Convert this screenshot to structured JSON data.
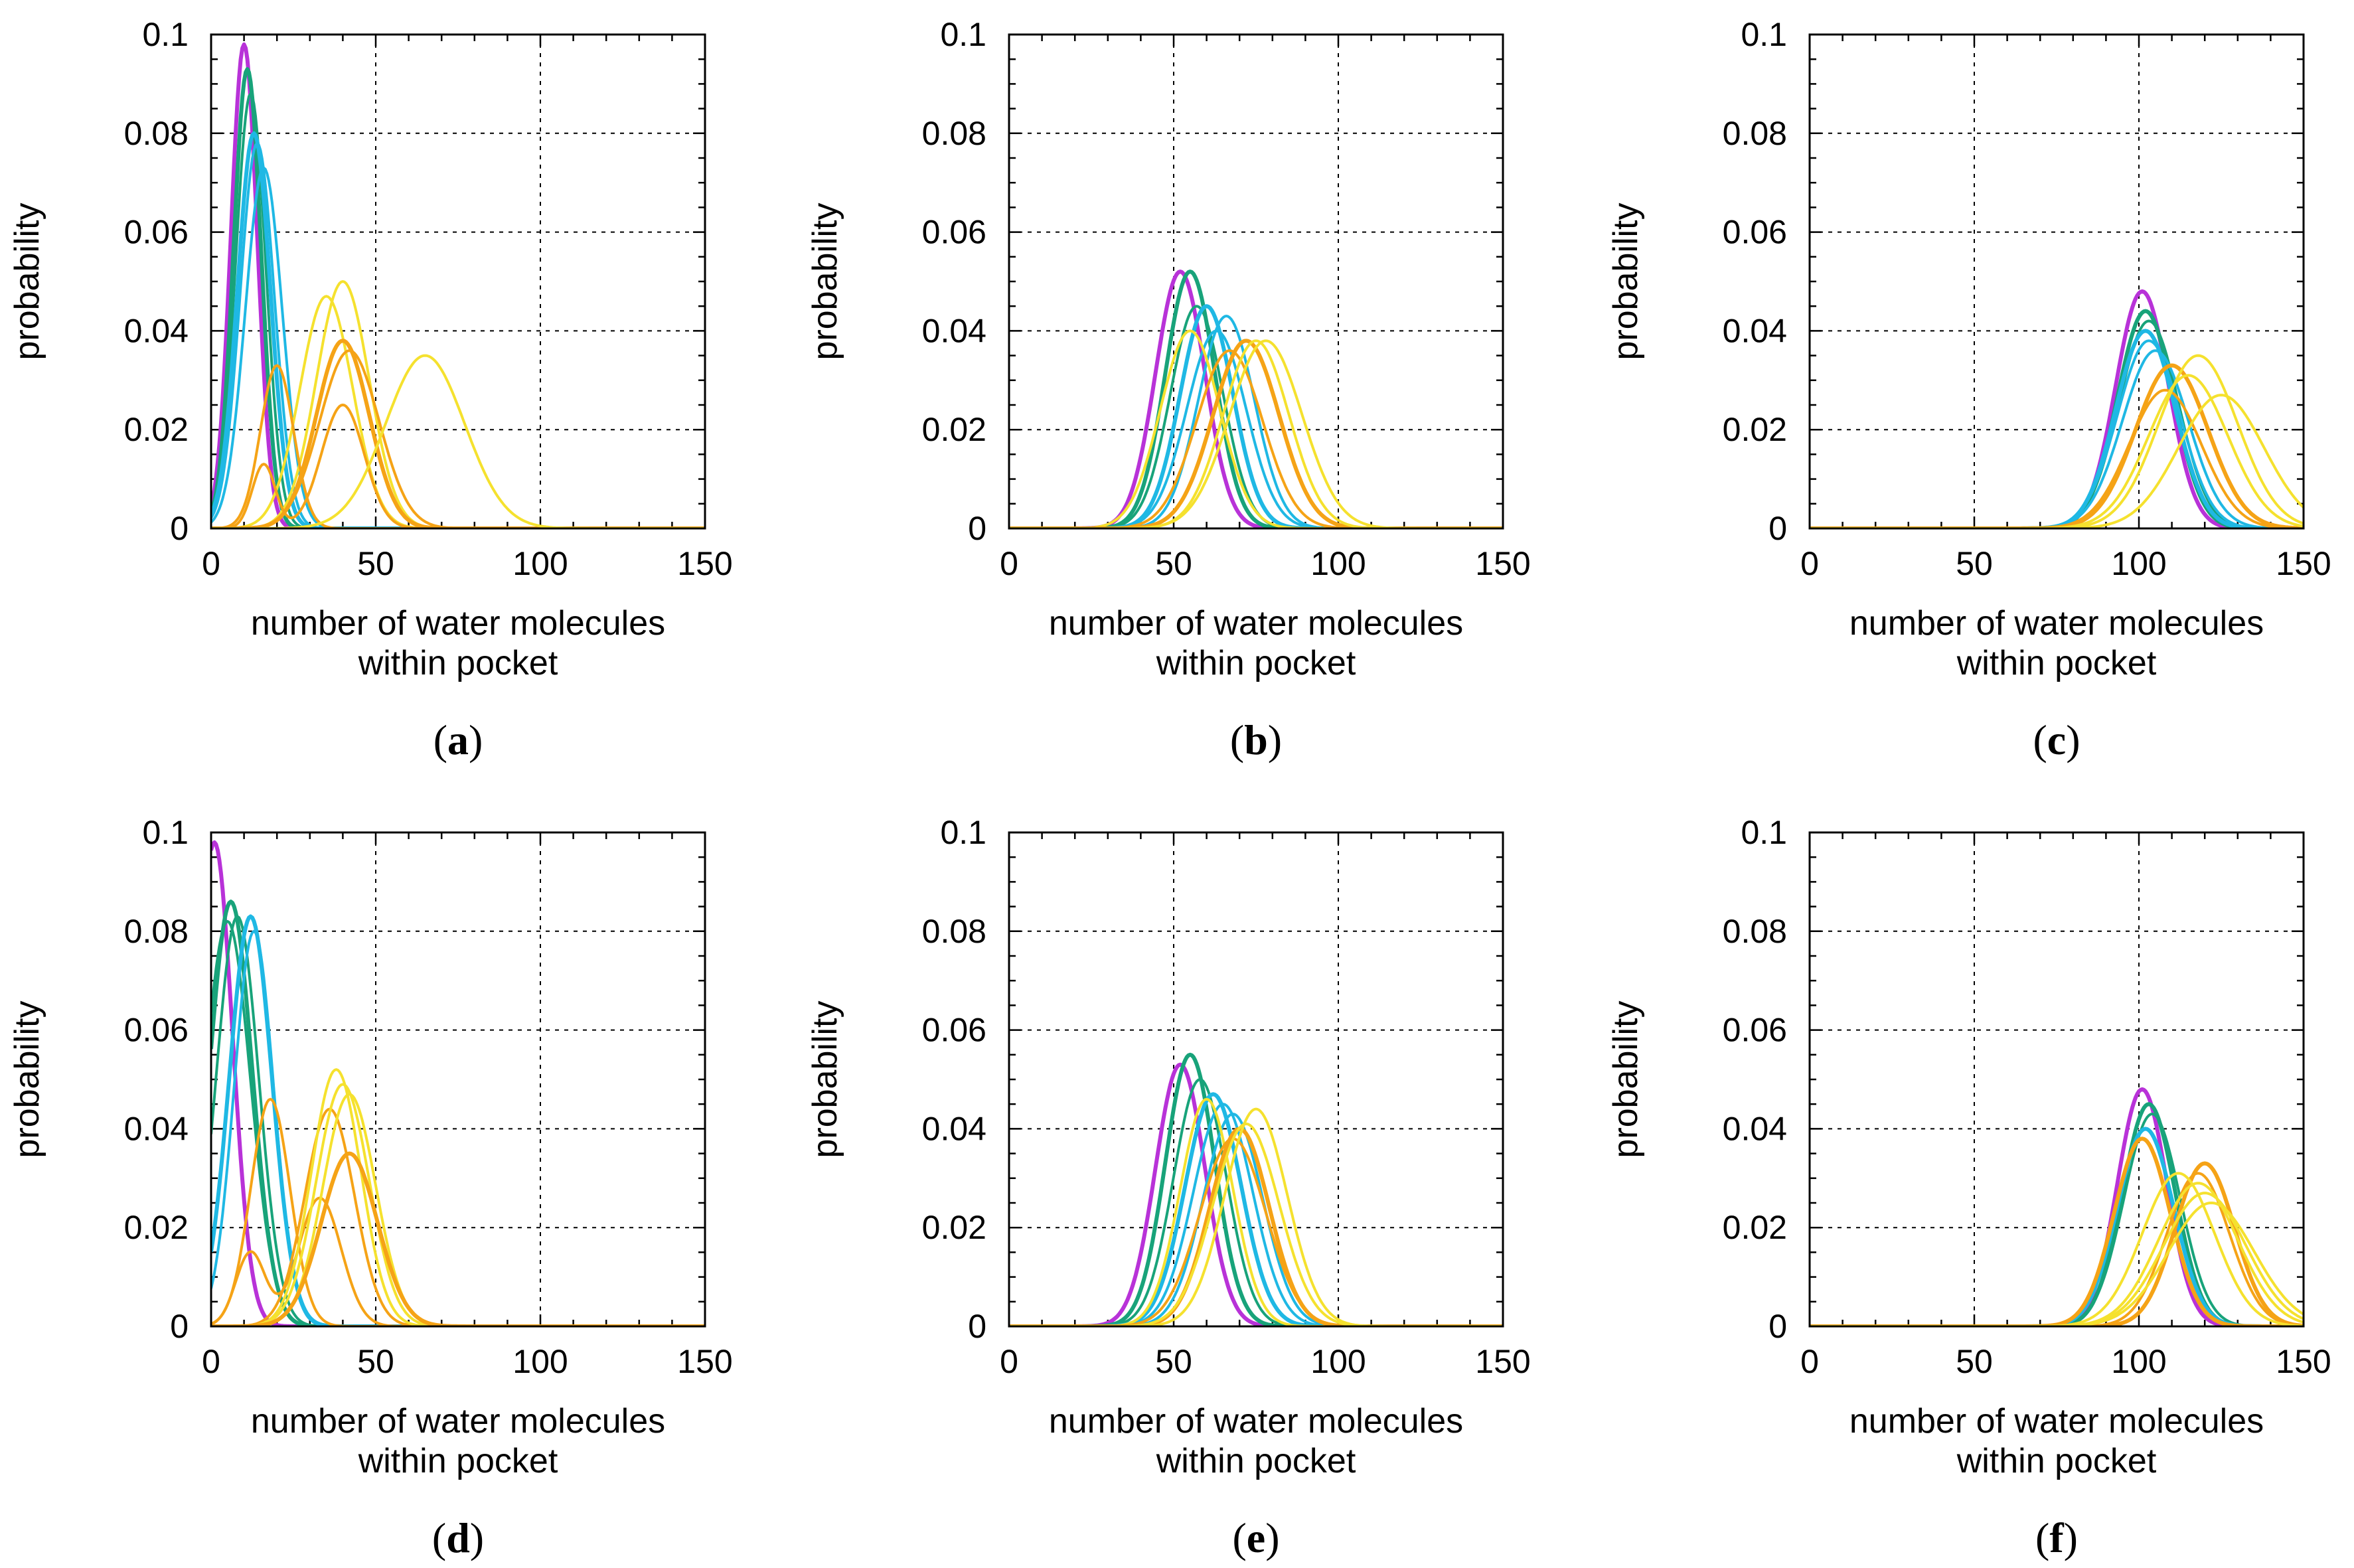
{
  "colors": {
    "magenta": "#b832d8",
    "teal": "#18a37a",
    "cyan": "#1fb8e4",
    "orange": "#f5a316",
    "yellow": "#f5e12e"
  },
  "chart_data": [
    {
      "type": "line",
      "caption_letter": "a",
      "xlabel_line1": "number of water molecules",
      "xlabel_line2": "within pocket",
      "ylabel": "probability",
      "xlim": [
        0,
        150
      ],
      "ylim": [
        0,
        0.1
      ],
      "xticks": [
        "0",
        "50",
        "100",
        "150"
      ],
      "yticks": [
        "0",
        "0.02",
        "0.04",
        "0.06",
        "0.08",
        "0.1"
      ],
      "grid": true,
      "series": [
        {
          "peaks": [
            [
              10,
              4.0,
              0.098
            ]
          ],
          "color": "magenta",
          "width": 6
        },
        {
          "peaks": [
            [
              11,
              4.2,
              0.093
            ]
          ],
          "color": "teal",
          "width": 6
        },
        {
          "peaks": [
            [
              12,
              4.6,
              0.088
            ]
          ],
          "color": "teal",
          "width": 4
        },
        {
          "peaks": [
            [
              13,
              5.0,
              0.08
            ]
          ],
          "color": "cyan",
          "width": 6
        },
        {
          "peaks": [
            [
              14,
              5.2,
              0.078
            ]
          ],
          "color": "cyan",
          "width": 4
        },
        {
          "peaks": [
            [
              16,
              5.6,
              0.073
            ]
          ],
          "color": "cyan",
          "width": 4
        },
        {
          "peaks": [
            [
              35,
              8.0,
              0.047
            ]
          ],
          "color": "yellow",
          "width": 4
        },
        {
          "peaks": [
            [
              40,
              8.0,
              0.05
            ]
          ],
          "color": "yellow",
          "width": 4
        },
        {
          "peaks": [
            [
              40,
              8.0,
              0.038
            ]
          ],
          "color": "orange",
          "width": 6
        },
        {
          "peaks": [
            [
              20,
              5.0,
              0.033
            ]
          ],
          "color": "orange",
          "width": 4
        },
        {
          "peaks": [
            [
              16,
              3.5,
              0.013
            ],
            [
              40,
              6.5,
              0.025
            ]
          ],
          "color": "orange",
          "width": 4
        },
        {
          "peaks": [
            [
              42,
              9.0,
              0.036
            ]
          ],
          "color": "orange",
          "width": 4
        },
        {
          "peaks": [
            [
              65,
              12.0,
              0.035
            ]
          ],
          "color": "yellow",
          "width": 4
        }
      ]
    },
    {
      "type": "line",
      "caption_letter": "b",
      "xlabel_line1": "number of water molecules",
      "xlabel_line2": "within pocket",
      "ylabel": "probability",
      "xlim": [
        0,
        150
      ],
      "ylim": [
        0,
        0.1
      ],
      "xticks": [
        "0",
        "50",
        "100",
        "150"
      ],
      "yticks": [
        "0",
        "0.02",
        "0.04",
        "0.06",
        "0.08",
        "0.1"
      ],
      "grid": true,
      "series": [
        {
          "peaks": [
            [
              52,
              7.5,
              0.052
            ]
          ],
          "color": "magenta",
          "width": 6
        },
        {
          "peaks": [
            [
              55,
              7.5,
              0.052
            ]
          ],
          "color": "teal",
          "width": 6
        },
        {
          "peaks": [
            [
              57,
              8.0,
              0.045
            ]
          ],
          "color": "teal",
          "width": 4
        },
        {
          "peaks": [
            [
              60,
              8.0,
              0.045
            ]
          ],
          "color": "cyan",
          "width": 6
        },
        {
          "peaks": [
            [
              66,
              8.5,
              0.043
            ]
          ],
          "color": "cyan",
          "width": 4
        },
        {
          "peaks": [
            [
              63,
              9.0,
              0.04
            ]
          ],
          "color": "cyan",
          "width": 4
        },
        {
          "peaks": [
            [
              55,
              9.0,
              0.04
            ]
          ],
          "color": "yellow",
          "width": 4
        },
        {
          "peaks": [
            [
              72,
              10.0,
              0.038
            ]
          ],
          "color": "orange",
          "width": 6
        },
        {
          "peaks": [
            [
              67,
              10.0,
              0.036
            ]
          ],
          "color": "orange",
          "width": 4
        },
        {
          "peaks": [
            [
              75,
              10.0,
              0.038
            ]
          ],
          "color": "yellow",
          "width": 4
        },
        {
          "peaks": [
            [
              78,
              11.0,
              0.038
            ]
          ],
          "color": "yellow",
          "width": 4
        }
      ]
    },
    {
      "type": "line",
      "caption_letter": "c",
      "xlabel_line1": "number of water molecules",
      "xlabel_line2": "within pocket",
      "ylabel": "probability",
      "xlim": [
        0,
        150
      ],
      "ylim": [
        0,
        0.1
      ],
      "xticks": [
        "0",
        "50",
        "100",
        "150"
      ],
      "yticks": [
        "0",
        "0.02",
        "0.04",
        "0.06",
        "0.08",
        "0.1"
      ],
      "grid": true,
      "series": [
        {
          "peaks": [
            [
              101,
              8.0,
              0.048
            ]
          ],
          "color": "magenta",
          "width": 6
        },
        {
          "peaks": [
            [
              102,
              8.5,
              0.044
            ]
          ],
          "color": "teal",
          "width": 6
        },
        {
          "peaks": [
            [
              103,
              9.0,
              0.042
            ]
          ],
          "color": "teal",
          "width": 4
        },
        {
          "peaks": [
            [
              102,
              9.0,
              0.04
            ]
          ],
          "color": "cyan",
          "width": 6
        },
        {
          "peaks": [
            [
              103,
              9.5,
              0.038
            ]
          ],
          "color": "cyan",
          "width": 4
        },
        {
          "peaks": [
            [
              105,
              10.0,
              0.036
            ]
          ],
          "color": "cyan",
          "width": 4
        },
        {
          "peaks": [
            [
              110,
              11.0,
              0.033
            ]
          ],
          "color": "orange",
          "width": 6
        },
        {
          "peaks": [
            [
              108,
              11.0,
              0.028
            ]
          ],
          "color": "orange",
          "width": 4
        },
        {
          "peaks": [
            [
              118,
              12.0,
              0.035
            ]
          ],
          "color": "yellow",
          "width": 4
        },
        {
          "peaks": [
            [
              115,
              12.0,
              0.031
            ]
          ],
          "color": "yellow",
          "width": 4
        },
        {
          "peaks": [
            [
              125,
              13.0,
              0.027
            ]
          ],
          "color": "yellow",
          "width": 4
        }
      ]
    },
    {
      "type": "line",
      "caption_letter": "d",
      "xlabel_line1": "number of water molecules",
      "xlabel_line2": "within pocket",
      "ylabel": "probability",
      "xlim": [
        0,
        150
      ],
      "ylim": [
        0,
        0.1
      ],
      "xticks": [
        "0",
        "50",
        "100",
        "150"
      ],
      "yticks": [
        "0",
        "0.02",
        "0.04",
        "0.06",
        "0.08",
        "0.1"
      ],
      "grid": true,
      "series": [
        {
          "peaks": [
            [
              1,
              5.5,
              0.098
            ]
          ],
          "color": "magenta",
          "width": 6
        },
        {
          "peaks": [
            [
              6,
              6.5,
              0.086
            ]
          ],
          "color": "teal",
          "width": 6
        },
        {
          "peaks": [
            [
              8,
              6.5,
              0.083
            ]
          ],
          "color": "teal",
          "width": 4
        },
        {
          "peaks": [
            [
              5,
              7.0,
              0.082
            ]
          ],
          "color": "teal",
          "width": 4
        },
        {
          "peaks": [
            [
              12,
              6.5,
              0.083
            ]
          ],
          "color": "cyan",
          "width": 6
        },
        {
          "peaks": [
            [
              13,
              6.0,
              0.08
            ]
          ],
          "color": "cyan",
          "width": 4
        },
        {
          "peaks": [
            [
              18,
              6.0,
              0.046
            ]
          ],
          "color": "orange",
          "width": 4
        },
        {
          "peaks": [
            [
              12,
              4.5,
              0.015
            ],
            [
              33,
              6.5,
              0.026
            ]
          ],
          "color": "orange",
          "width": 4
        },
        {
          "peaks": [
            [
              36,
              7.5,
              0.044
            ]
          ],
          "color": "orange",
          "width": 4
        },
        {
          "peaks": [
            [
              38,
              7.5,
              0.052
            ]
          ],
          "color": "yellow",
          "width": 4
        },
        {
          "peaks": [
            [
              40,
              8.0,
              0.049
            ]
          ],
          "color": "yellow",
          "width": 4
        },
        {
          "peaks": [
            [
              42,
              8.0,
              0.047
            ]
          ],
          "color": "yellow",
          "width": 4
        },
        {
          "peaks": [
            [
              42,
              8.5,
              0.035
            ]
          ],
          "color": "orange",
          "width": 6
        }
      ]
    },
    {
      "type": "line",
      "caption_letter": "e",
      "xlabel_line1": "number of water molecules",
      "xlabel_line2": "within pocket",
      "ylabel": "probability",
      "xlim": [
        0,
        150
      ],
      "ylim": [
        0,
        0.1
      ],
      "xticks": [
        "0",
        "50",
        "100",
        "150"
      ],
      "yticks": [
        "0",
        "0.02",
        "0.04",
        "0.06",
        "0.08",
        "0.1"
      ],
      "grid": true,
      "series": [
        {
          "peaks": [
            [
              52,
              7.5,
              0.053
            ]
          ],
          "color": "magenta",
          "width": 6
        },
        {
          "peaks": [
            [
              55,
              7.5,
              0.055
            ]
          ],
          "color": "teal",
          "width": 6
        },
        {
          "peaks": [
            [
              58,
              8.0,
              0.05
            ]
          ],
          "color": "teal",
          "width": 4
        },
        {
          "peaks": [
            [
              62,
              8.5,
              0.047
            ]
          ],
          "color": "cyan",
          "width": 6
        },
        {
          "peaks": [
            [
              65,
              9.0,
              0.045
            ]
          ],
          "color": "cyan",
          "width": 4
        },
        {
          "peaks": [
            [
              68,
              9.0,
              0.043
            ]
          ],
          "color": "cyan",
          "width": 4
        },
        {
          "peaks": [
            [
              60,
              8.0,
              0.046
            ]
          ],
          "color": "yellow",
          "width": 4
        },
        {
          "peaks": [
            [
              70,
              9.0,
              0.04
            ]
          ],
          "color": "orange",
          "width": 6
        },
        {
          "peaks": [
            [
              68,
              10.0,
              0.038
            ]
          ],
          "color": "orange",
          "width": 4
        },
        {
          "peaks": [
            [
              75,
              9.5,
              0.044
            ]
          ],
          "color": "yellow",
          "width": 4
        },
        {
          "peaks": [
            [
              72,
              10.0,
              0.041
            ]
          ],
          "color": "yellow",
          "width": 4
        }
      ]
    },
    {
      "type": "line",
      "caption_letter": "f",
      "xlabel_line1": "number of water molecules",
      "xlabel_line2": "within pocket",
      "ylabel": "probability",
      "xlim": [
        0,
        150
      ],
      "ylim": [
        0,
        0.1
      ],
      "xticks": [
        "0",
        "50",
        "100",
        "150"
      ],
      "yticks": [
        "0",
        "0.02",
        "0.04",
        "0.06",
        "0.08",
        "0.1"
      ],
      "grid": true,
      "series": [
        {
          "peaks": [
            [
              101,
              7.5,
              0.048
            ]
          ],
          "color": "magenta",
          "width": 6
        },
        {
          "peaks": [
            [
              103,
              8.0,
              0.045
            ]
          ],
          "color": "teal",
          "width": 6
        },
        {
          "peaks": [
            [
              104,
              8.5,
              0.043
            ]
          ],
          "color": "teal",
          "width": 4
        },
        {
          "peaks": [
            [
              102,
              8.5,
              0.04
            ]
          ],
          "color": "cyan",
          "width": 6
        },
        {
          "peaks": [
            [
              101,
              8.5,
              0.038
            ]
          ],
          "color": "orange",
          "width": 6
        },
        {
          "peaks": [
            [
              120,
              9.0,
              0.033
            ]
          ],
          "color": "orange",
          "width": 6
        },
        {
          "peaks": [
            [
              118,
              9.5,
              0.031
            ]
          ],
          "color": "orange",
          "width": 4
        },
        {
          "peaks": [
            [
              112,
              11.0,
              0.031
            ]
          ],
          "color": "yellow",
          "width": 4
        },
        {
          "peaks": [
            [
              118,
              12.0,
              0.029
            ]
          ],
          "color": "yellow",
          "width": 4
        },
        {
          "peaks": [
            [
              120,
              12.5,
              0.027
            ]
          ],
          "color": "yellow",
          "width": 4
        },
        {
          "peaks": [
            [
              122,
              13.0,
              0.025
            ]
          ],
          "color": "yellow",
          "width": 4
        }
      ]
    }
  ]
}
